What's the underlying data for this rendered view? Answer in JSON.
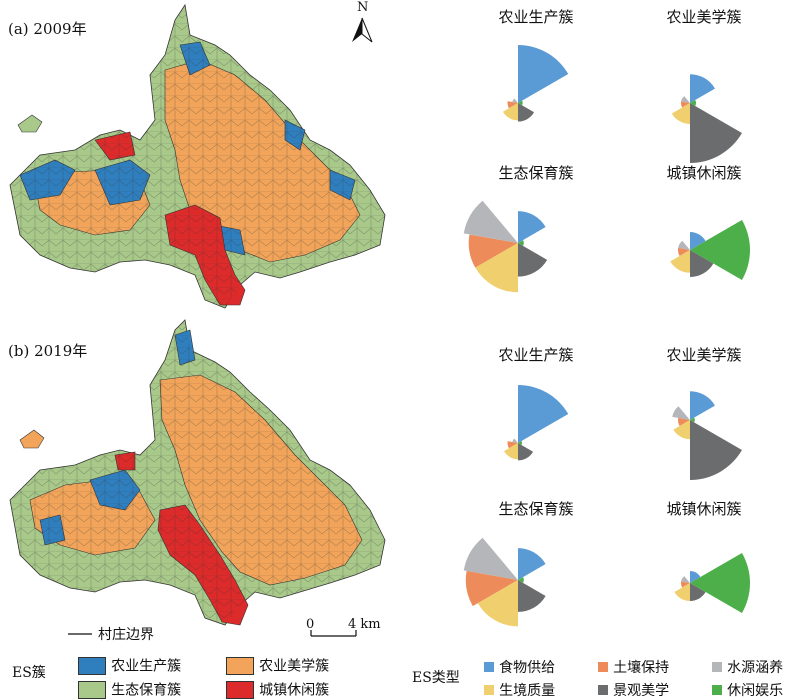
{
  "panels": [
    {
      "label": "(a) 2009年",
      "roses": [
        {
          "title": "农业生产簇",
          "values": [
            1.0,
            0.18,
            0.1,
            0.3,
            0.32,
            0.08
          ]
        },
        {
          "title": "农业美学簇",
          "values": [
            0.48,
            0.15,
            0.15,
            0.35,
            1.0,
            0.1
          ]
        },
        {
          "title": "生态保育簇",
          "values": [
            0.55,
            0.85,
            0.95,
            0.85,
            0.58,
            0.1
          ]
        },
        {
          "title": "城镇休闲簇",
          "values": [
            0.3,
            0.2,
            0.2,
            0.38,
            0.45,
            1.0
          ]
        }
      ]
    },
    {
      "label": "(b) 2019年",
      "roses": [
        {
          "title": "农业生产簇",
          "values": [
            1.0,
            0.18,
            0.1,
            0.28,
            0.3,
            0.06
          ]
        },
        {
          "title": "农业美学簇",
          "values": [
            0.48,
            0.2,
            0.3,
            0.32,
            1.0,
            0.08
          ]
        },
        {
          "title": "生态保育簇",
          "values": [
            0.55,
            0.9,
            0.95,
            0.8,
            0.55,
            0.1
          ]
        },
        {
          "title": "城镇休闲簇",
          "values": [
            0.2,
            0.15,
            0.15,
            0.3,
            0.3,
            1.0
          ]
        }
      ]
    }
  ],
  "es_types": [
    {
      "name": "食物供给",
      "color": "#5b9bd5"
    },
    {
      "name": "土壤保持",
      "color": "#ed8b5b"
    },
    {
      "name": "水源涵养",
      "color": "#b4b6ba"
    },
    {
      "name": "生境质量",
      "color": "#f0d06e"
    },
    {
      "name": "景观美学",
      "color": "#6b6c6e"
    },
    {
      "name": "休闲娱乐",
      "color": "#4daf4a"
    }
  ],
  "legend": {
    "boundary_label": "村庄边界",
    "scale_zero": "0",
    "scale_four": "4 km",
    "north": "N",
    "es_cluster_title": "ES簇",
    "es_type_title": "ES类型",
    "clusters": [
      {
        "name": "农业生产簇",
        "color": "#2f7fbf"
      },
      {
        "name": "农业美学簇",
        "color": "#f2a55a"
      },
      {
        "name": "生态保育簇",
        "color": "#a8c98a"
      },
      {
        "name": "城镇休闲簇",
        "color": "#dd2a2a"
      }
    ]
  }
}
